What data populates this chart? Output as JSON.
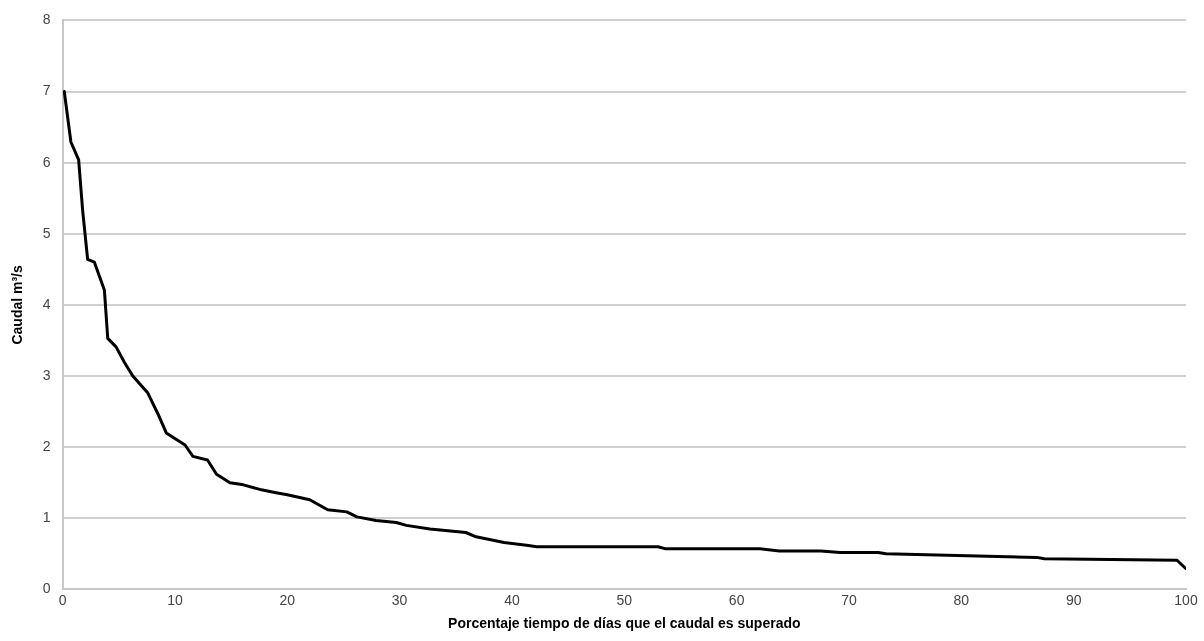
{
  "chart_data": {
    "type": "line",
    "xlabel": "Porcentaje tiempo de días que el caudal es superado",
    "ylabel": "Caudal m³/s",
    "xlim": [
      0,
      100
    ],
    "xticks": [
      0,
      10,
      20,
      30,
      40,
      50,
      60,
      70,
      80,
      90,
      100
    ],
    "ylim": [
      0,
      8
    ],
    "yticks": [
      0,
      1,
      2,
      3,
      4,
      5,
      6,
      7,
      8
    ],
    "grid": "y",
    "legend": false,
    "marker": "none",
    "line_style": "solid",
    "series": [
      {
        "color": "#000000",
        "x": [
          0.15,
          0.74,
          1.43,
          1.79,
          2.23,
          2.83,
          3.72,
          4.02,
          4.76,
          5.51,
          6.25,
          7.59,
          8.48,
          9.23,
          10.9,
          11.6,
          12.9,
          13.7,
          14.9,
          16.1,
          17.7,
          19.0,
          20.0,
          22.0,
          23.6,
          25.3,
          26.2,
          27.9,
          29.7,
          30.6,
          32.7,
          35.9,
          36.8,
          39.3,
          41.3,
          42.2,
          47.3,
          53.0,
          53.7,
          62.1,
          63.8,
          67.5,
          69.2,
          72.6,
          73.3,
          86.7,
          87.4,
          99.2,
          100
        ],
        "values": [
          7.0,
          6.29,
          6.04,
          5.32,
          4.64,
          4.6,
          4.21,
          3.53,
          3.41,
          3.19,
          3.0,
          2.76,
          2.47,
          2.2,
          2.03,
          1.87,
          1.82,
          1.62,
          1.5,
          1.47,
          1.4,
          1.36,
          1.33,
          1.26,
          1.12,
          1.09,
          1.02,
          0.97,
          0.94,
          0.9,
          0.85,
          0.8,
          0.74,
          0.66,
          0.62,
          0.6,
          0.6,
          0.6,
          0.57,
          0.57,
          0.54,
          0.54,
          0.52,
          0.52,
          0.5,
          0.45,
          0.43,
          0.41,
          0.29
        ]
      }
    ]
  }
}
